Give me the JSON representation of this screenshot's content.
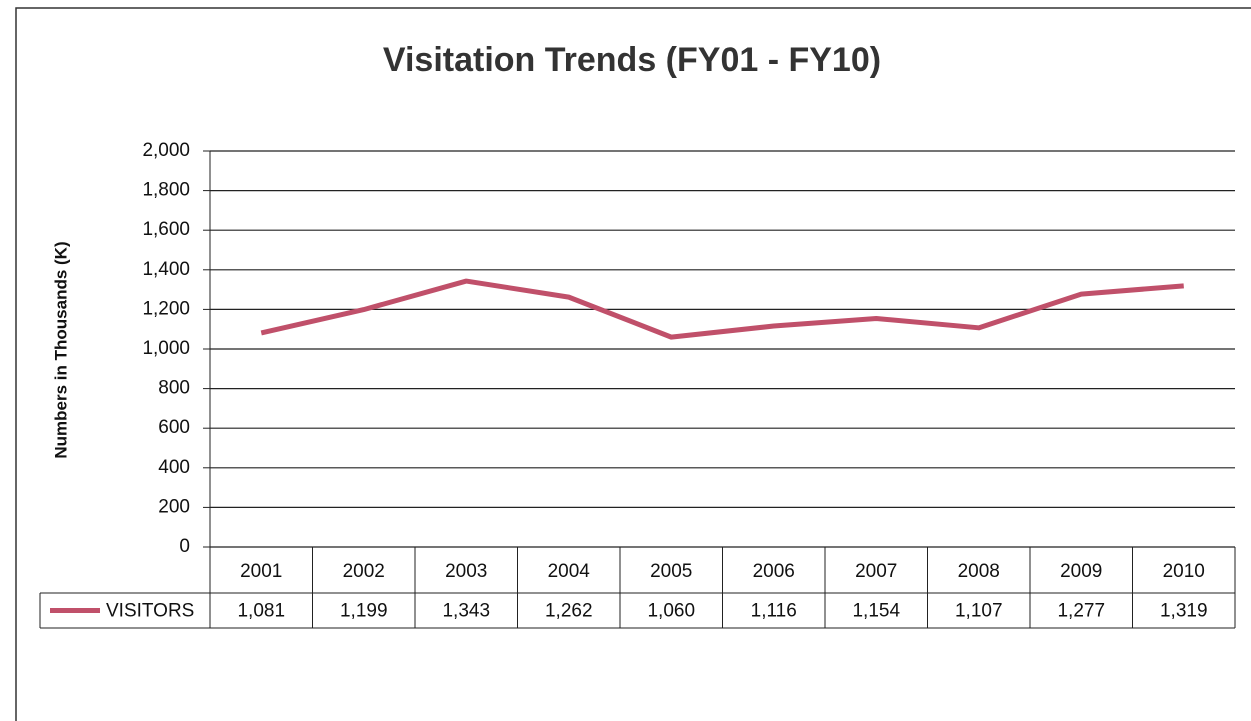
{
  "chart_data": {
    "type": "line",
    "title": "Visitation  Trends (FY01 - FY10)",
    "y_label": "Numbers in Thousands  (K)",
    "categories": [
      "2001",
      "2002",
      "2003",
      "2004",
      "2005",
      "2006",
      "2007",
      "2008",
      "2009",
      "2010"
    ],
    "series": [
      {
        "name": "VISITORS",
        "color": "#c0506a",
        "values": [
          1081,
          1199,
          1343,
          1262,
          1060,
          1116,
          1154,
          1107,
          1277,
          1319
        ],
        "value_labels": [
          "1,081",
          "1,199",
          "1,343",
          "1,262",
          "1,060",
          "1,116",
          "1,154",
          "1,107",
          "1,277",
          "1,319"
        ]
      }
    ],
    "ylim": [
      0,
      2000
    ],
    "yticks": [
      0,
      200,
      400,
      600,
      800,
      {
        "value": 1000,
        "label": "1,000"
      },
      {
        "value": 1200,
        "label": "1,200"
      },
      {
        "value": 1400,
        "label": "1,400"
      },
      {
        "value": 1600,
        "label": "1,600"
      },
      {
        "value": 1800,
        "label": "1,800"
      },
      {
        "value": 2000,
        "label": "2,000"
      }
    ],
    "grid": true
  }
}
